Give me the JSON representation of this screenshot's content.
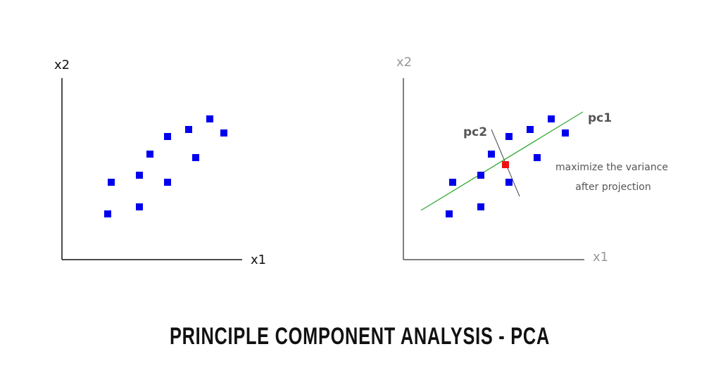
{
  "title": "PRINCIPLE COMPONENT ANALYSIS - PCA",
  "colors": {
    "point": "#0000ee",
    "center": "#ee1111",
    "pc1_line": "#33aa33",
    "pc2_line": "#555555",
    "axis_dark": "#111111",
    "axis_light": "#999999",
    "label_dark": "#111111",
    "label_light": "#999999",
    "pc_label": "#555555",
    "note": "#555555"
  },
  "left_plot": {
    "x_label": "x1",
    "y_label": "x2",
    "points": [
      {
        "x": 1.3,
        "y": 1.3
      },
      {
        "x": 1.4,
        "y": 2.2
      },
      {
        "x": 2.2,
        "y": 1.5
      },
      {
        "x": 2.2,
        "y": 2.4
      },
      {
        "x": 2.5,
        "y": 3.0
      },
      {
        "x": 3.0,
        "y": 2.2
      },
      {
        "x": 3.0,
        "y": 3.5
      },
      {
        "x": 3.6,
        "y": 3.7
      },
      {
        "x": 3.8,
        "y": 2.9
      },
      {
        "x": 4.2,
        "y": 4.0
      },
      {
        "x": 4.6,
        "y": 3.6
      }
    ]
  },
  "right_plot": {
    "x_label": "x1",
    "y_label": "x2",
    "points": [
      {
        "x": 1.3,
        "y": 1.3
      },
      {
        "x": 1.4,
        "y": 2.2
      },
      {
        "x": 2.2,
        "y": 1.5
      },
      {
        "x": 2.2,
        "y": 2.4
      },
      {
        "x": 2.5,
        "y": 3.0
      },
      {
        "x": 3.0,
        "y": 2.2
      },
      {
        "x": 3.0,
        "y": 3.5
      },
      {
        "x": 3.6,
        "y": 3.7
      },
      {
        "x": 3.8,
        "y": 2.9
      },
      {
        "x": 4.2,
        "y": 4.0
      },
      {
        "x": 4.6,
        "y": 3.6
      }
    ],
    "center": {
      "x": 2.9,
      "y": 2.7
    },
    "pc1": {
      "label": "pc1",
      "from": {
        "x": 0.5,
        "y": 1.4
      },
      "to": {
        "x": 5.1,
        "y": 4.2
      }
    },
    "pc2": {
      "label": "pc2",
      "from": {
        "x": 2.5,
        "y": 3.7
      },
      "to": {
        "x": 3.3,
        "y": 1.8
      }
    },
    "note_line1": "maximize the variance",
    "note_line2": "after projection"
  }
}
